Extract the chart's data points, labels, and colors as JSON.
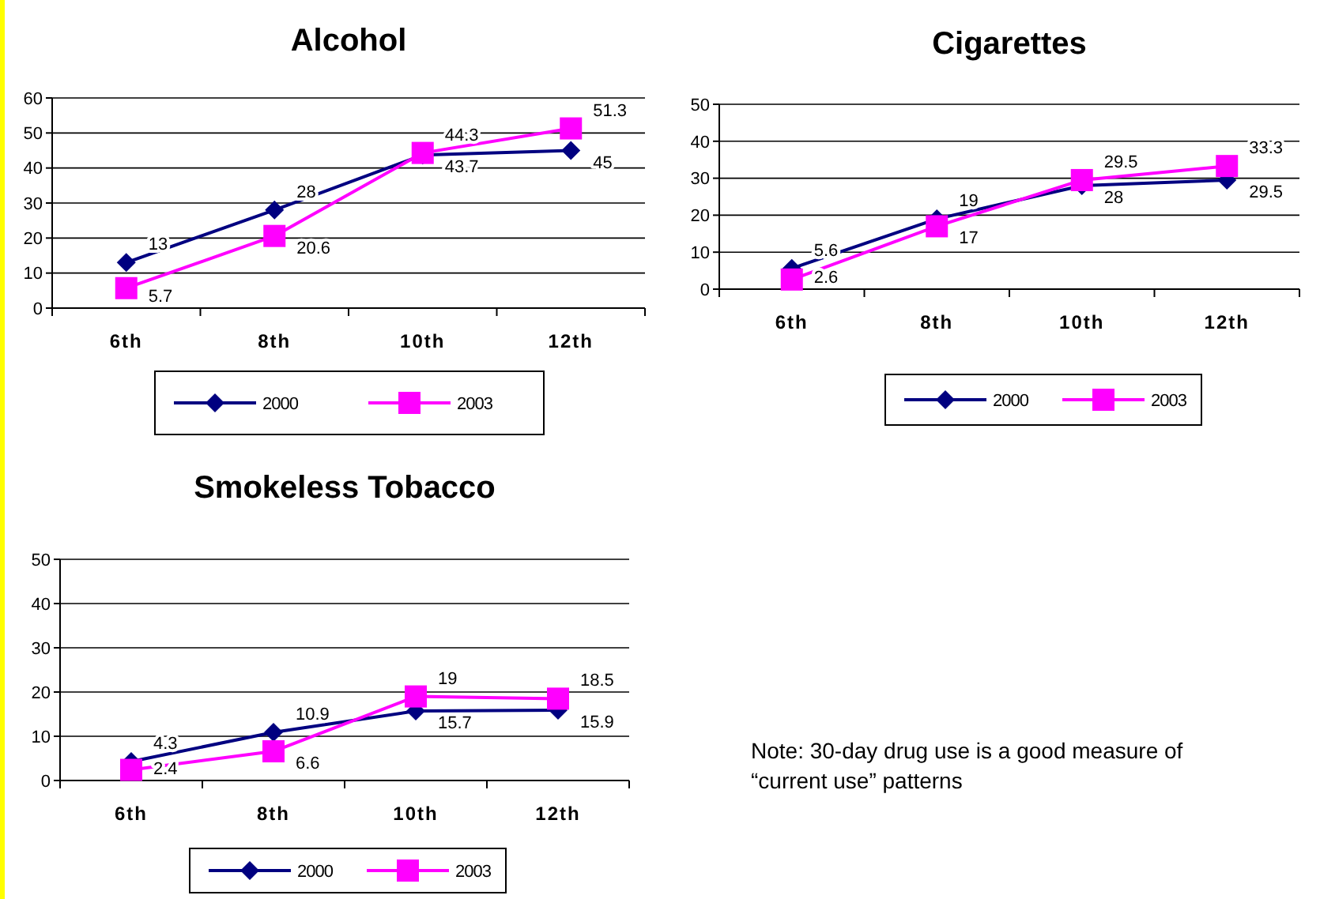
{
  "chart_data": [
    {
      "type": "line",
      "title": "Alcohol",
      "categories": [
        "6th",
        "8th",
        "10th",
        "12th"
      ],
      "ylim": [
        0,
        60
      ],
      "yticks": [
        0,
        10,
        20,
        30,
        40,
        50,
        60
      ],
      "grid": "y",
      "legend": "bottom",
      "data_labels": true,
      "series": [
        {
          "name": "2000",
          "color": "#000080",
          "marker": "diamond",
          "values": [
            13,
            28,
            43.7,
            45
          ]
        },
        {
          "name": "2003",
          "color": "#ff00ff",
          "marker": "square",
          "values": [
            5.7,
            20.6,
            44.3,
            51.3
          ]
        }
      ]
    },
    {
      "type": "line",
      "title": "Cigarettes",
      "categories": [
        "6th",
        "8th",
        "10th",
        "12th"
      ],
      "ylim": [
        0,
        50
      ],
      "yticks": [
        0,
        10,
        20,
        30,
        40,
        50
      ],
      "grid": "y",
      "legend": "bottom",
      "data_labels": true,
      "series": [
        {
          "name": "2000",
          "color": "#000080",
          "marker": "diamond",
          "values": [
            5.6,
            19,
            28,
            29.5
          ]
        },
        {
          "name": "2003",
          "color": "#ff00ff",
          "marker": "square",
          "values": [
            2.6,
            17,
            29.5,
            33.3
          ]
        }
      ]
    },
    {
      "type": "line",
      "title": "Smokeless Tobacco",
      "categories": [
        "6th",
        "8th",
        "10th",
        "12th"
      ],
      "ylim": [
        0,
        50
      ],
      "yticks": [
        0,
        10,
        20,
        30,
        40,
        50
      ],
      "grid": "y",
      "legend": "bottom",
      "data_labels": true,
      "series": [
        {
          "name": "2000",
          "color": "#000080",
          "marker": "diamond",
          "values": [
            4.3,
            10.9,
            15.7,
            15.9
          ]
        },
        {
          "name": "2003",
          "color": "#ff00ff",
          "marker": "square",
          "values": [
            2.4,
            6.6,
            19,
            18.5
          ]
        }
      ]
    },
    {
      "type": "other",
      "annotations": [
        "Note:  30-day drug use is a good measure of “current use” patterns"
      ]
    }
  ]
}
